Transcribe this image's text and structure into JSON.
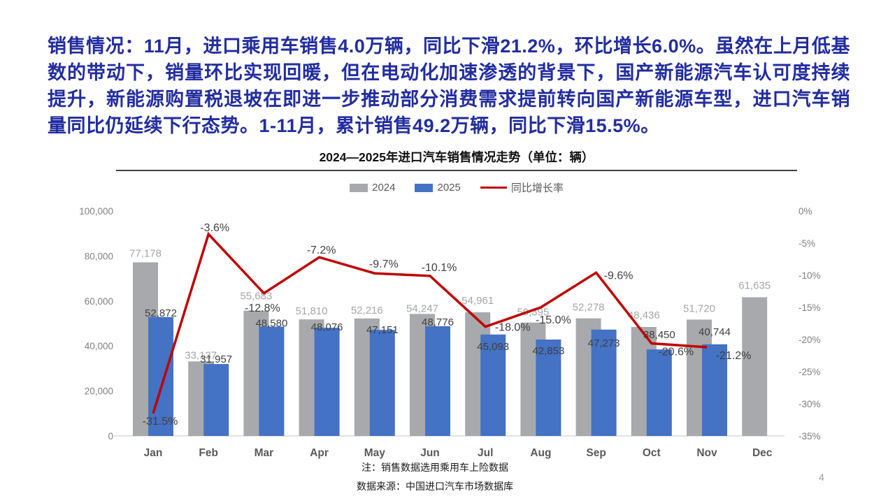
{
  "headline": {
    "text": "销售情况：11月，进口乘用车销售4.0万辆，同比下滑21.2%，环比增长6.0%。虽然在上月低基数的带动下，销量环比实现回暖，但在电动化加速渗透的背景下，国产新能源汽车认可度持续提升，新能源购置税退坡在即进一步推动部分消费需求提前转向国产新能源车型，进口汽车销量同比仍延续下行态势。1-11月，累计销售49.2万辆，同比下滑15.5%。"
  },
  "colors": {
    "headline_blue": "#222DA0",
    "bar_2024_gray": "#A7A9AC",
    "bar_2025_blue": "#4472C4",
    "growth_line_red": "#C00000",
    "label_gray": "#A6A6A6",
    "label_dark": "#3F3F3F",
    "axis_tick_gray": "#808080",
    "month_label_gray": "#595959",
    "baseline_gray": "#D9D9D9"
  },
  "chart_data": {
    "type": "bar",
    "subtype": "grouped-bars-with-line",
    "title": "2024—2025年进口汽车销售情况走势（单位：辆）",
    "categories": [
      "Jan",
      "Feb",
      "Mar",
      "Apr",
      "May",
      "Jun",
      "Jul",
      "Aug",
      "Sep",
      "Oct",
      "Nov",
      "Dec"
    ],
    "series": [
      {
        "name": "2024",
        "type": "bar",
        "color": "#A7A9AC",
        "values": [
          77178,
          33137,
          55683,
          51810,
          52216,
          54247,
          54961,
          50395,
          52278,
          48436,
          51720,
          61635
        ]
      },
      {
        "name": "2025",
        "type": "bar",
        "color": "#4472C4",
        "values": [
          52872,
          31957,
          48580,
          48076,
          47151,
          48776,
          45093,
          42853,
          47273,
          38450,
          40744,
          null
        ]
      },
      {
        "name": "同比增长率",
        "type": "line",
        "color": "#C00000",
        "axis": "right",
        "values": [
          -31.5,
          -3.6,
          -12.8,
          -7.2,
          -9.7,
          -10.1,
          -18.0,
          -15.0,
          -9.6,
          -20.6,
          -21.2,
          null
        ]
      }
    ],
    "left_axis": {
      "min": 0,
      "max": 100000,
      "tick_labels": [
        "100,000",
        "80,000",
        "60,000",
        "40,000",
        "20,000",
        "0"
      ]
    },
    "right_axis": {
      "min": -35,
      "max": 0,
      "tick_labels": [
        "0%",
        "-5%",
        "-10%",
        "-15%",
        "-20%",
        "-25%",
        "-30%",
        "-35%"
      ]
    },
    "legend": [
      "2024",
      "2025",
      "同比增长率"
    ],
    "legend_position": "top",
    "grid": false
  },
  "footer": {
    "note1": "注：销售数据选用乘用车上险数据",
    "note2": "数据来源：中国进口汽车市场数据库"
  },
  "page_number": "4"
}
